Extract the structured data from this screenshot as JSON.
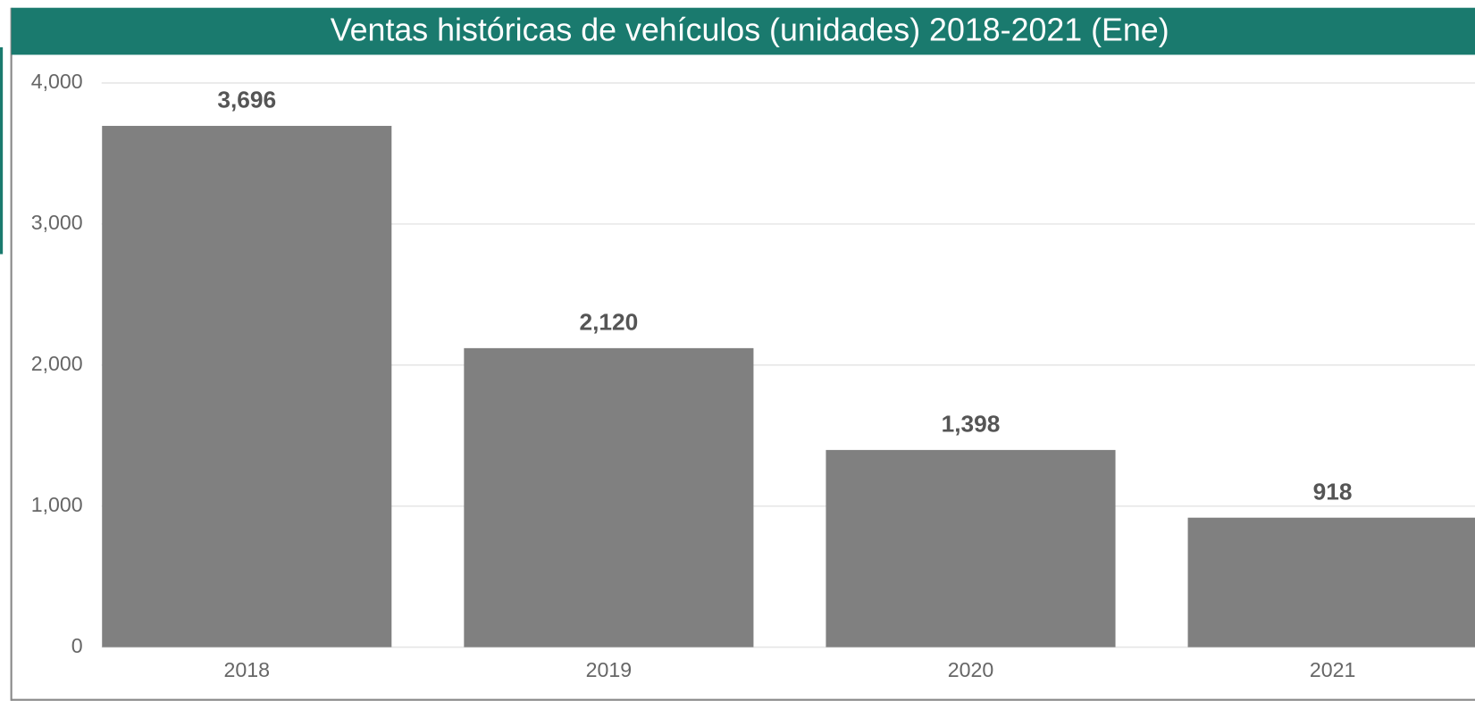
{
  "chart_data": {
    "type": "bar",
    "title": "Ventas históricas de vehículos (unidades) 2018-2021 (Ene)",
    "categories": [
      "2018",
      "2019",
      "2020",
      "2021"
    ],
    "values": [
      3696,
      2120,
      1398,
      918
    ],
    "value_labels": [
      "3,696",
      "2,120",
      "1,398",
      "918"
    ],
    "color": "#808080",
    "ylim": [
      0,
      4000
    ],
    "yticks": [
      0,
      {
        "value": 1000,
        "label": "1,000"
      },
      {
        "value": 2000,
        "label": "2,000"
      },
      {
        "value": 3000,
        "label": "3,000"
      },
      {
        "value": 4000,
        "label": "4,000"
      }
    ],
    "grid": true
  }
}
